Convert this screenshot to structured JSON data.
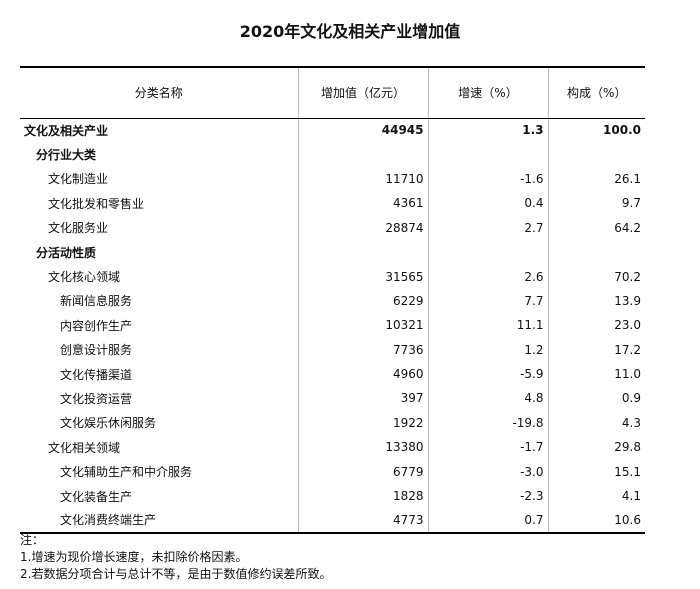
{
  "title": "2020年文化及相关产业增加值",
  "table": {
    "header": [
      "分类名称",
      "增加值（亿元）",
      "增速（%）",
      "构成（%）"
    ],
    "rows": [
      [
        "文化及相关产业",
        "44945",
        "1.3",
        "100.0"
      ],
      [
        "分行业大类"
      ],
      [
        "文化制造业",
        "11710",
        "-1.6",
        "26.1"
      ],
      [
        "文化批发和零售业",
        "4361",
        "0.4",
        "9.7"
      ],
      [
        "文化服务业",
        "28874",
        "2.7",
        "64.2"
      ],
      [
        "分活动性质"
      ],
      [
        "文化核心领域",
        "31565",
        "2.6",
        "70.2"
      ],
      [
        "新闻信息服务",
        "6229",
        "7.7",
        "13.9"
      ],
      [
        "内容创作生产",
        "10321",
        "11.1",
        "23.0"
      ],
      [
        "创意设计服务",
        "7736",
        "1.2",
        "17.2"
      ],
      [
        "文化传播渠道",
        "4960",
        "-5.9",
        "11.0"
      ],
      [
        "文化投资运营",
        "397",
        "4.8",
        "0.9"
      ],
      [
        "文化娱乐休闲服务",
        "1922",
        "-19.8",
        "4.3"
      ],
      [
        "文化相关领域",
        "13380",
        "-1.7",
        "29.8"
      ],
      [
        "文化辅助生产和中介服务",
        "6779",
        "-3.0",
        "15.1"
      ],
      [
        "文化装备生产",
        "1828",
        "-2.3",
        "4.1"
      ],
      [
        "文化消费终端生产",
        "4773",
        "0.7",
        "10.6"
      ]
    ]
  },
  "notes": {
    "label": "注：",
    "items": [
      "1.增速为现价增长速度，未扣除价格因素。",
      "2.若数据分项合计与总计不等，是由于数值修约误差所致。"
    ]
  }
}
